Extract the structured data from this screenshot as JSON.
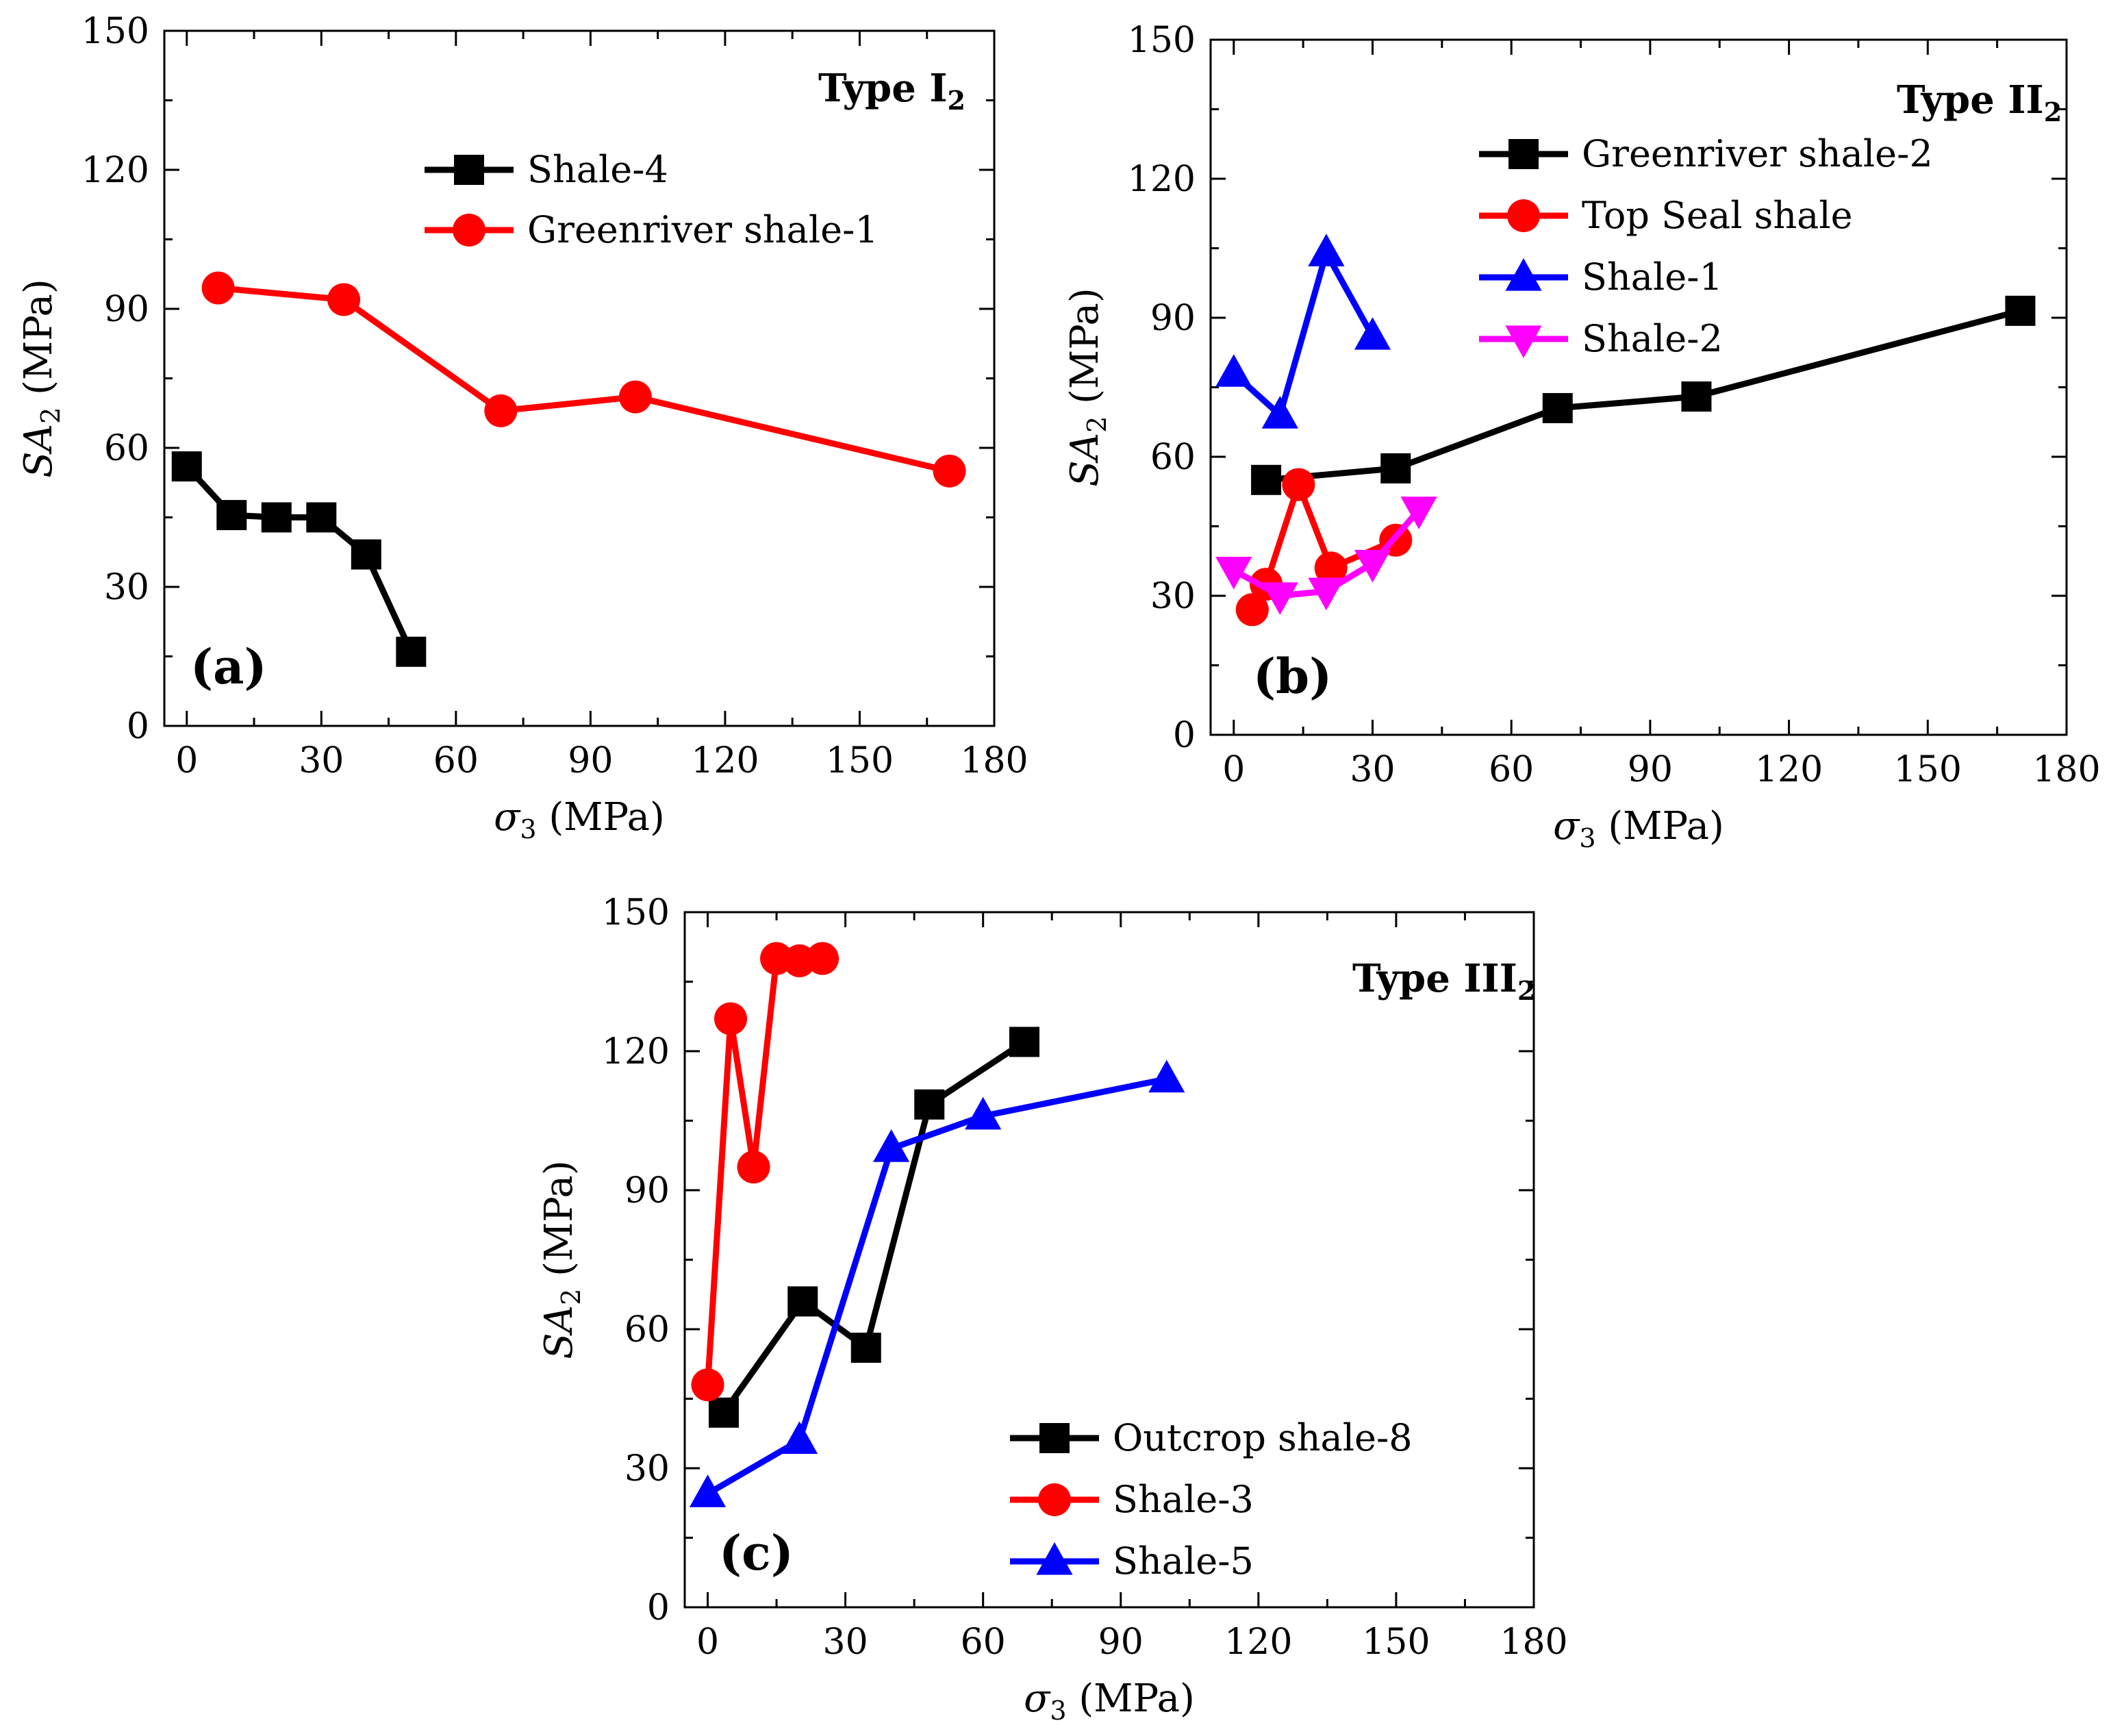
{
  "chart_data": [
    {
      "panel": "a",
      "type": "line",
      "panel_label": "(a)",
      "type_label": {
        "main": "Type I",
        "sub": "2"
      },
      "xlabel": {
        "symbol": "σ",
        "sub": "3",
        "unit": "(MPa)"
      },
      "ylabel": {
        "prefix": "SA",
        "sub": "2",
        "unit": "(MPa)"
      },
      "xlim": [
        -5,
        180
      ],
      "ylim": [
        0,
        150
      ],
      "xticks": [
        0,
        30,
        60,
        90,
        120,
        150,
        180
      ],
      "yticks": [
        0,
        30,
        60,
        90,
        120,
        150
      ],
      "legend_position": "top-right",
      "series": [
        {
          "name": "Shale-4",
          "color": "#000000",
          "marker": "square",
          "x": [
            0,
            10,
            20,
            30,
            40,
            50
          ],
          "y": [
            56,
            45.5,
            45,
            45,
            37,
            16
          ]
        },
        {
          "name": "Greenriver shale-1",
          "color": "#ff0000",
          "marker": "circle",
          "x": [
            7,
            35,
            70,
            100,
            170
          ],
          "y": [
            94.5,
            92,
            68,
            71,
            55
          ]
        }
      ]
    },
    {
      "panel": "b",
      "type": "line",
      "panel_label": "(b)",
      "type_label": {
        "main": "Type II",
        "sub": "2"
      },
      "xlabel": {
        "symbol": "σ",
        "sub": "3",
        "unit": "(MPa)"
      },
      "ylabel": {
        "prefix": "SA",
        "sub": "2",
        "unit": "(MPa)"
      },
      "xlim": [
        -5,
        180
      ],
      "ylim": [
        0,
        150
      ],
      "xticks": [
        0,
        30,
        60,
        90,
        120,
        150,
        180
      ],
      "yticks": [
        0,
        30,
        60,
        90,
        120,
        150
      ],
      "legend_position": "top-right",
      "series": [
        {
          "name": "Greenriver shale-2",
          "color": "#000000",
          "marker": "square",
          "x": [
            7,
            35,
            70,
            100,
            170
          ],
          "y": [
            55,
            57.5,
            70.5,
            73,
            91.5
          ]
        },
        {
          "name": "Top Seal shale",
          "color": "#ff0000",
          "marker": "circle",
          "x": [
            4,
            7,
            14,
            21,
            35
          ],
          "y": [
            27,
            32.5,
            54,
            36,
            42
          ]
        },
        {
          "name": "Shale-1",
          "color": "#0000ff",
          "marker": "triangle-up",
          "x": [
            0,
            10,
            20,
            30
          ],
          "y": [
            78,
            69,
            104,
            86
          ]
        },
        {
          "name": "Shale-2",
          "color": "#ff00ff",
          "marker": "triangle-down",
          "x": [
            0,
            10,
            20,
            30,
            40
          ],
          "y": [
            35.5,
            30,
            31,
            37,
            48.5
          ]
        }
      ]
    },
    {
      "panel": "c",
      "type": "line",
      "panel_label": "(c)",
      "type_label": {
        "main": "Type III",
        "sub": "2"
      },
      "xlabel": {
        "symbol": "σ",
        "sub": "3",
        "unit": "(MPa)"
      },
      "ylabel": {
        "prefix": "SA",
        "sub": "2",
        "unit": "(MPa)"
      },
      "xlim": [
        -5,
        180
      ],
      "ylim": [
        0,
        150
      ],
      "xticks": [
        0,
        30,
        60,
        90,
        120,
        150,
        180
      ],
      "yticks": [
        0,
        30,
        60,
        90,
        120,
        150
      ],
      "legend_position": "bottom-right",
      "series": [
        {
          "name": "Outcrop shale-8",
          "color": "#000000",
          "marker": "square",
          "x": [
            3.5,
            20.7,
            34.5,
            48.3,
            69
          ],
          "y": [
            42,
            66,
            56,
            108.5,
            122
          ]
        },
        {
          "name": "Shale-3",
          "color": "#ff0000",
          "marker": "circle",
          "x": [
            0,
            5,
            10,
            15,
            20,
            25
          ],
          "y": [
            48,
            127,
            95,
            140,
            139.5,
            140
          ]
        },
        {
          "name": "Shale-5",
          "color": "#0000ff",
          "marker": "triangle-up",
          "x": [
            0,
            20,
            40,
            60,
            100
          ],
          "y": [
            24.5,
            36,
            99,
            106,
            114
          ]
        }
      ]
    }
  ]
}
